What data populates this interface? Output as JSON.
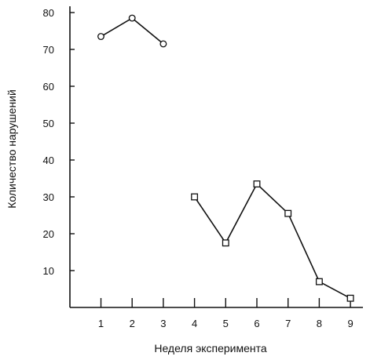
{
  "chart_data": {
    "type": "line",
    "xlabel": "Неделя эксперимента",
    "ylabel": "Количество нарушений",
    "x_ticks": [
      1,
      2,
      3,
      4,
      5,
      6,
      7,
      8,
      9
    ],
    "y_ticks": [
      10,
      20,
      30,
      40,
      50,
      60,
      70,
      80
    ],
    "xlim": [
      0,
      9.5
    ],
    "ylim": [
      0,
      82
    ],
    "grid": false,
    "legend": "none",
    "series": [
      {
        "marker": "circle",
        "x": [
          1,
          2,
          3
        ],
        "y": [
          73.5,
          78.5,
          71.5
        ]
      },
      {
        "marker": "square",
        "x": [
          4,
          5,
          6,
          7,
          8,
          9
        ],
        "y": [
          30,
          17.5,
          33.5,
          25.5,
          7,
          2.5
        ]
      }
    ]
  }
}
